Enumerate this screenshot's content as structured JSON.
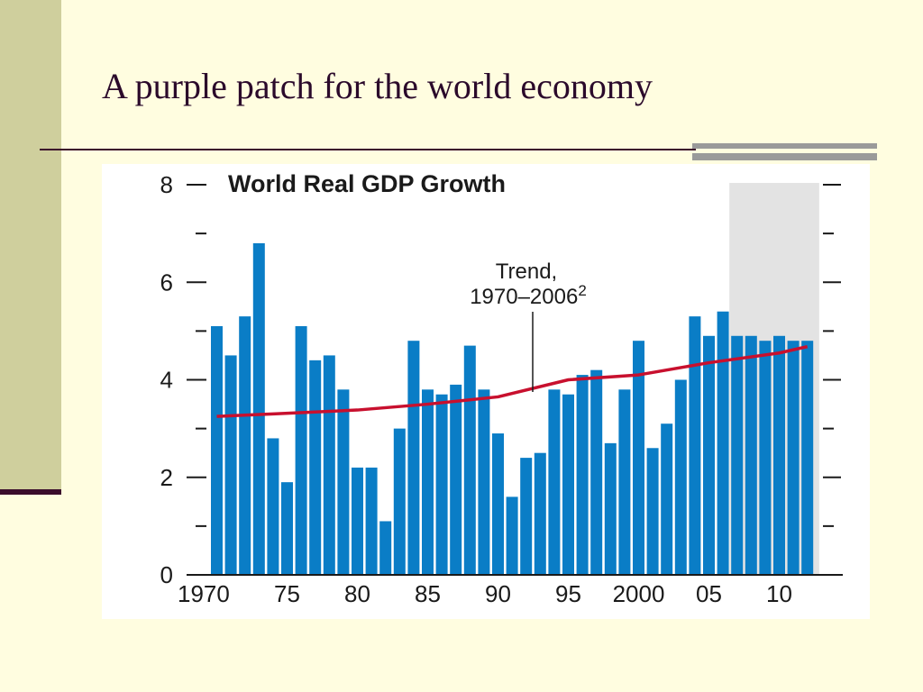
{
  "slide": {
    "title": "A purple patch for the world economy"
  },
  "colors": {
    "bar": "#0a7dc6",
    "trend": "#c8102e",
    "forecast_shade": "#e3e3e3",
    "axis": "#1a1a1a"
  },
  "chart_data": {
    "type": "bar",
    "title": "World Real GDP Growth",
    "xlabel": "",
    "ylabel": "",
    "ylim": [
      0,
      8
    ],
    "y_ticks": [
      "0",
      "2",
      "4",
      "6",
      "8"
    ],
    "x_tick_labels": [
      {
        "year": 1970,
        "label": "1970"
      },
      {
        "year": 1975,
        "label": "75"
      },
      {
        "year": 1980,
        "label": "80"
      },
      {
        "year": 1985,
        "label": "85"
      },
      {
        "year": 1990,
        "label": "90"
      },
      {
        "year": 1995,
        "label": "95"
      },
      {
        "year": 2000,
        "label": "2000"
      },
      {
        "year": 2005,
        "label": "05"
      },
      {
        "year": 2010,
        "label": "10"
      }
    ],
    "years": [
      1970,
      1971,
      1972,
      1973,
      1974,
      1975,
      1976,
      1977,
      1978,
      1979,
      1980,
      1981,
      1982,
      1983,
      1984,
      1985,
      1986,
      1987,
      1988,
      1989,
      1990,
      1991,
      1992,
      1993,
      1994,
      1995,
      1996,
      1997,
      1998,
      1999,
      2000,
      2001,
      2002,
      2003,
      2004,
      2005,
      2006,
      2007,
      2008,
      2009,
      2010,
      2011,
      2012
    ],
    "values": [
      5.1,
      4.5,
      5.3,
      6.8,
      2.8,
      1.9,
      5.1,
      4.4,
      4.5,
      3.8,
      2.2,
      2.2,
      1.1,
      3.0,
      4.8,
      3.8,
      3.7,
      3.9,
      4.7,
      3.8,
      2.9,
      1.6,
      2.4,
      2.5,
      3.8,
      3.7,
      4.1,
      4.2,
      2.7,
      3.8,
      4.8,
      2.6,
      3.1,
      4.0,
      5.3,
      4.9,
      5.4,
      4.9,
      4.9,
      4.8,
      4.9,
      4.8,
      4.8
    ],
    "forecast_shade": {
      "from_year": 2007,
      "to_year": 2012
    },
    "trend": {
      "label_line1": "Trend,",
      "label_line2": "1970–2006",
      "label_sup": "2",
      "points": [
        {
          "year": 1970,
          "value": 3.25
        },
        {
          "year": 1974,
          "value": 3.3
        },
        {
          "year": 1980,
          "value": 3.38
        },
        {
          "year": 1985,
          "value": 3.5
        },
        {
          "year": 1990,
          "value": 3.65
        },
        {
          "year": 1995,
          "value": 4.0
        },
        {
          "year": 2000,
          "value": 4.1
        },
        {
          "year": 2005,
          "value": 4.35
        },
        {
          "year": 2010,
          "value": 4.55
        },
        {
          "year": 2012,
          "value": 4.68
        }
      ]
    }
  }
}
